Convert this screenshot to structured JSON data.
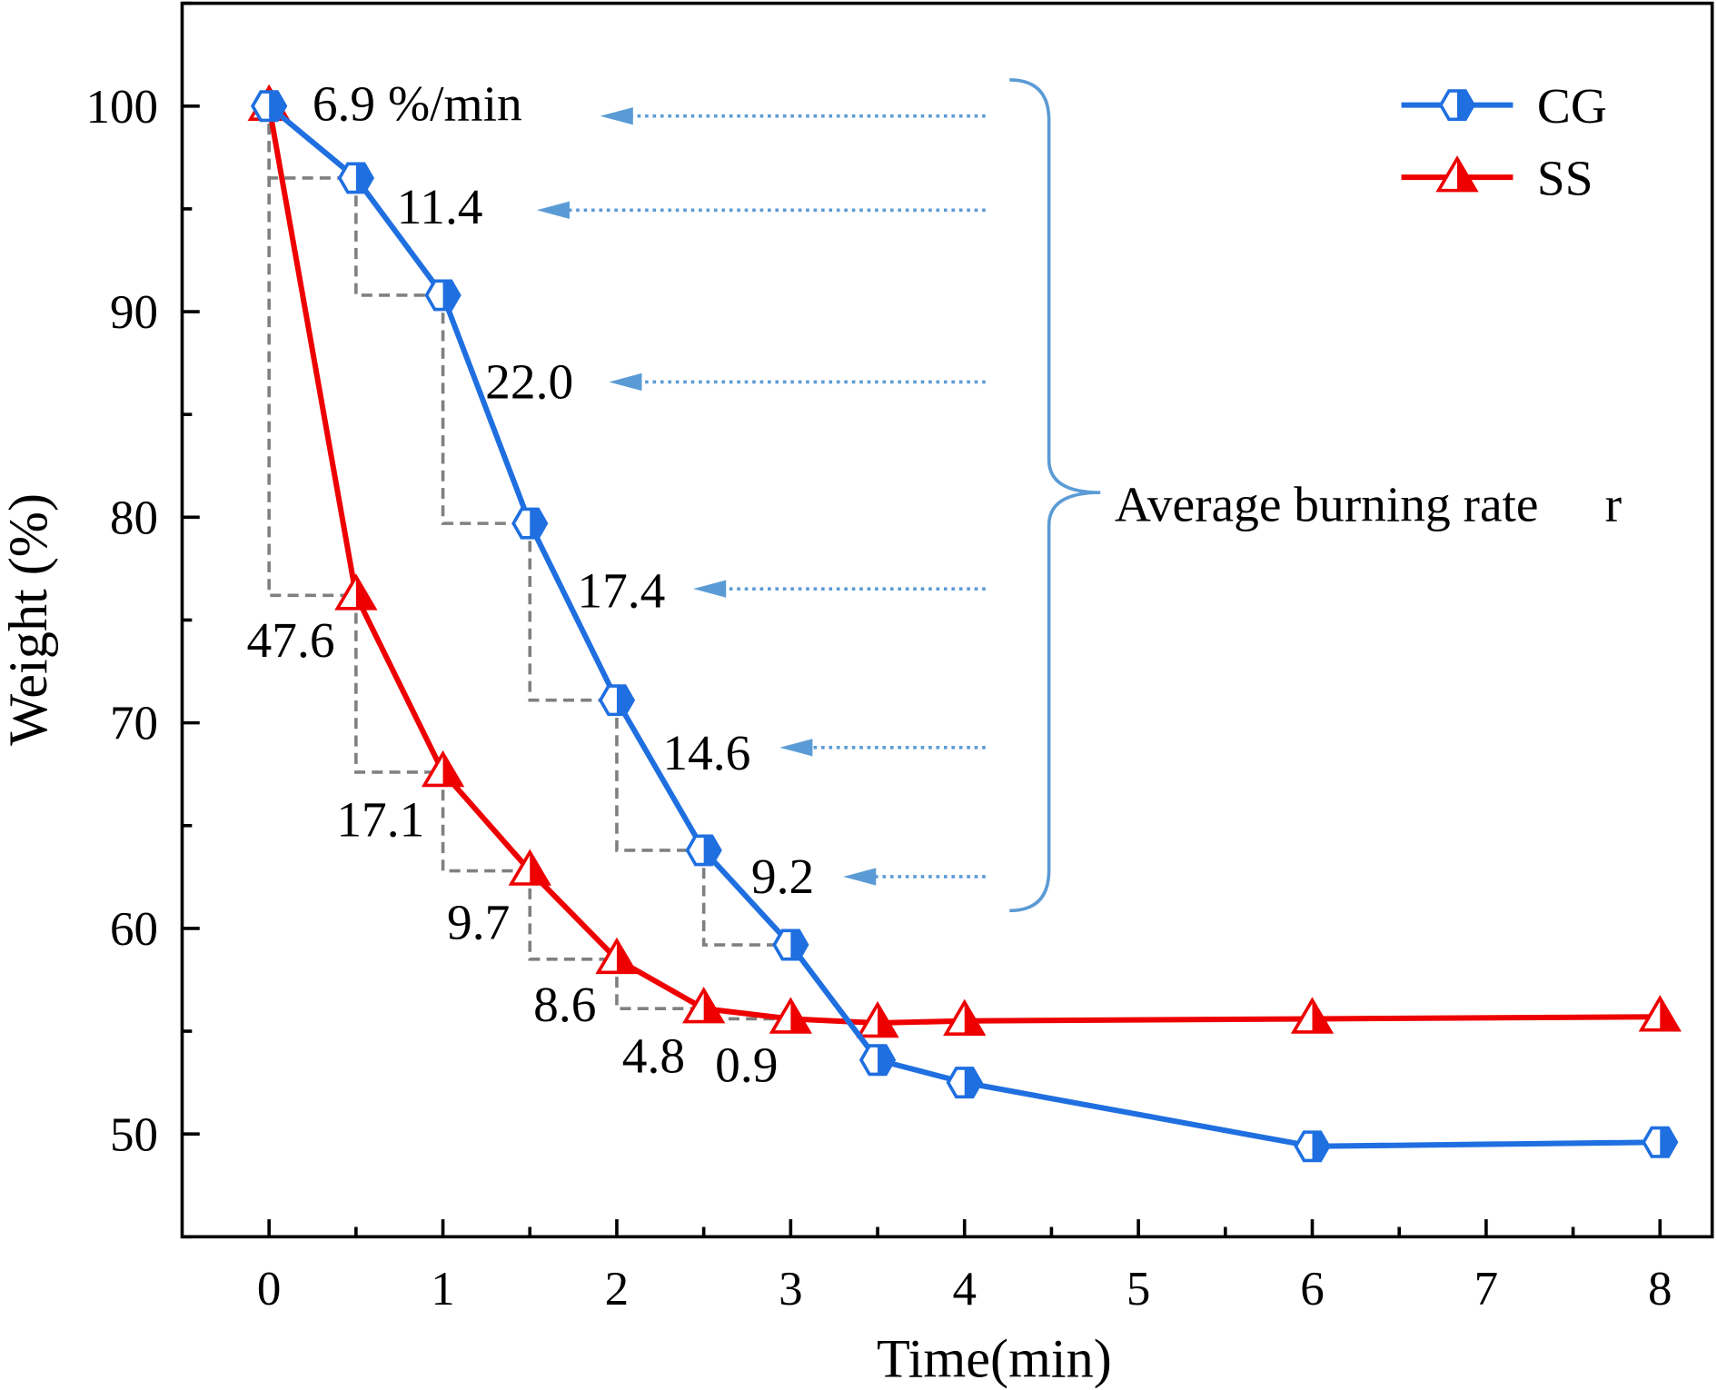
{
  "chart_data": {
    "type": "line",
    "title": "",
    "xlabel": "Time(min)",
    "ylabel": "Weight (%)",
    "xlim": [
      -0.5,
      8.3
    ],
    "ylim": [
      45,
      105
    ],
    "x_ticks": [
      0,
      1,
      2,
      3,
      4,
      5,
      6,
      7,
      8
    ],
    "y_ticks": [
      50,
      60,
      70,
      80,
      90,
      100
    ],
    "grid": false,
    "legend_position": "top-right",
    "series": [
      {
        "name": "CG",
        "color": "#1f6fe0",
        "marker": "hexagon-half",
        "x": [
          0,
          0.5,
          1,
          1.5,
          2,
          2.5,
          3,
          3.5,
          4,
          6,
          8
        ],
        "y": [
          100,
          96.5,
          90.8,
          79.7,
          71.1,
          63.8,
          59.2,
          53.6,
          52.5,
          49.4,
          49.6
        ]
      },
      {
        "name": "SS",
        "color": "#ee0000",
        "marker": "triangle-half",
        "x": [
          0,
          0.5,
          1,
          1.5,
          2,
          2.5,
          3,
          3.5,
          4,
          6,
          8
        ],
        "y": [
          100,
          76.2,
          67.6,
          62.8,
          58.5,
          56.1,
          55.6,
          55.4,
          55.5,
          55.6,
          55.7
        ]
      }
    ],
    "annotations": {
      "cg_rates": [
        "6.9 %/min",
        "11.4",
        "22.0",
        "17.4",
        "14.6",
        "9.2"
      ],
      "ss_rates": [
        "47.6",
        "17.1",
        "9.7",
        "8.6",
        "4.8",
        "0.9"
      ],
      "brace_label": "Average burning rate",
      "brace_symbol": "r",
      "arrow_color": "#5b9bd5"
    }
  }
}
